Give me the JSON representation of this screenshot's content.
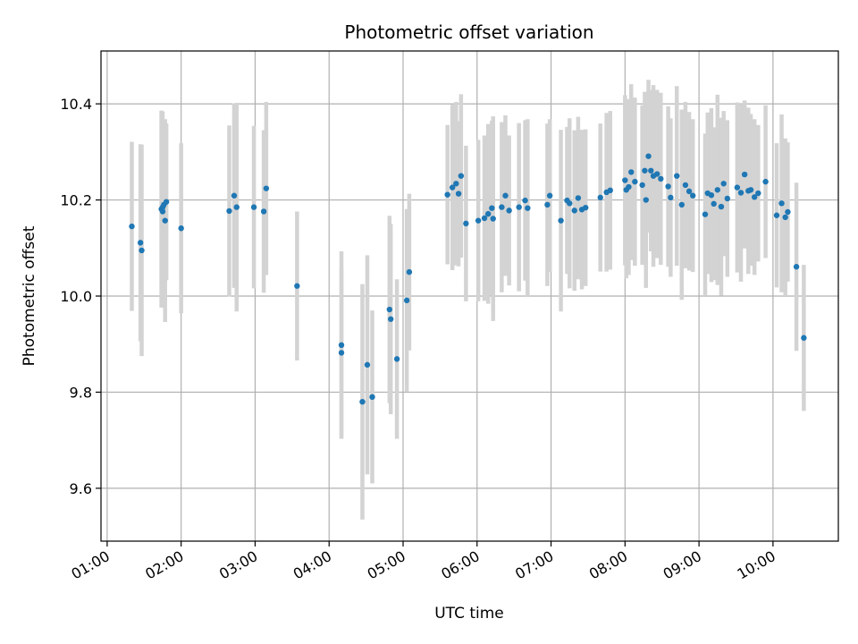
{
  "chart_data": {
    "type": "scatter",
    "title": "Photometric offset variation",
    "xlabel": "UTC time",
    "ylabel": "Photometric offset",
    "grid": true,
    "xlim": [
      "00:55",
      "10:53"
    ],
    "ylim": [
      9.49,
      10.51
    ],
    "x_ticks": [
      "01:00",
      "02:00",
      "03:00",
      "04:00",
      "05:00",
      "06:00",
      "07:00",
      "08:00",
      "09:00",
      "10:00"
    ],
    "y_ticks": [
      "9.6",
      "9.8",
      "10.0",
      "10.2",
      "10.4"
    ],
    "colors": {
      "points": "#1f77b4",
      "errorbars": "#d3d3d3",
      "grid": "#b0b0b0"
    },
    "series": [
      {
        "x": [
          "01:20",
          "01:27",
          "01:28",
          "01:44",
          "01:45",
          "01:45",
          "01:46",
          "01:47",
          "01:48",
          "02:00",
          "02:39",
          "02:43",
          "02:45",
          "02:59",
          "03:07",
          "03:09",
          "03:34",
          "04:10",
          "04:10",
          "04:27",
          "04:31",
          "04:35",
          "04:49",
          "04:50",
          "04:55",
          "05:03",
          "05:05",
          "05:36",
          "05:40",
          "05:43",
          "05:45",
          "05:47",
          "05:51",
          "06:01",
          "06:06",
          "06:09",
          "06:12",
          "06:13",
          "06:20",
          "06:23",
          "06:26",
          "06:34",
          "06:39",
          "06:41",
          "06:57",
          "06:59",
          "07:08",
          "07:13",
          "07:15",
          "07:19",
          "07:22",
          "07:25",
          "07:28",
          "07:40",
          "07:45",
          "07:48",
          "08:00",
          "08:01",
          "08:03",
          "08:05",
          "08:08",
          "08:14",
          "08:16",
          "08:17",
          "08:19",
          "08:21",
          "08:23",
          "08:26",
          "08:29",
          "08:35",
          "08:37",
          "08:42",
          "08:46",
          "08:49",
          "08:52",
          "08:55",
          "09:05",
          "09:07",
          "09:10",
          "09:12",
          "09:15",
          "09:18",
          "09:20",
          "09:23",
          "09:31",
          "09:34",
          "09:37",
          "09:40",
          "09:42",
          "09:45",
          "09:48",
          "09:54",
          "10:03",
          "10:07",
          "10:10",
          "10:12",
          "10:19",
          "10:25"
        ],
        "y": [
          10.145,
          10.111,
          10.095,
          10.181,
          10.185,
          10.176,
          10.19,
          10.157,
          10.196,
          10.141,
          10.177,
          10.209,
          10.185,
          10.185,
          10.176,
          10.224,
          10.021,
          9.898,
          9.882,
          9.78,
          9.857,
          9.79,
          9.972,
          9.952,
          9.869,
          9.991,
          10.05,
          10.211,
          10.226,
          10.234,
          10.213,
          10.25,
          10.151,
          10.157,
          10.162,
          10.171,
          10.183,
          10.161,
          10.185,
          10.209,
          10.178,
          10.185,
          10.199,
          10.183,
          10.19,
          10.209,
          10.157,
          10.199,
          10.193,
          10.178,
          10.204,
          10.18,
          10.184,
          10.205,
          10.216,
          10.22,
          10.241,
          10.221,
          10.227,
          10.258,
          10.238,
          10.231,
          10.261,
          10.2,
          10.291,
          10.261,
          10.25,
          10.254,
          10.244,
          10.228,
          10.205,
          10.25,
          10.19,
          10.231,
          10.218,
          10.209,
          10.17,
          10.214,
          10.21,
          10.192,
          10.221,
          10.186,
          10.234,
          10.203,
          10.226,
          10.215,
          10.253,
          10.219,
          10.221,
          10.206,
          10.214,
          10.238,
          10.168,
          10.193,
          10.164,
          10.175,
          10.061,
          9.913
        ],
        "err": [
          0.176,
          0.205,
          0.22,
          0.205,
          0.199,
          0.186,
          0.164,
          0.211,
          0.163,
          0.177,
          0.178,
          0.192,
          0.217,
          0.169,
          0.169,
          0.18,
          0.155,
          0.195,
          0.177,
          0.245,
          0.228,
          0.18,
          0.195,
          0.198,
          0.166,
          0.19,
          0.163,
          0.145,
          0.172,
          0.17,
          0.151,
          0.17,
          0.162,
          0.168,
          0.172,
          0.187,
          0.182,
          0.213,
          0.177,
          0.167,
          0.156,
          0.175,
          0.167,
          0.185,
          0.169,
          0.159,
          0.189,
          0.153,
          0.177,
          0.167,
          0.169,
          0.166,
          0.163,
          0.154,
          0.165,
          0.165,
          0.177,
          0.184,
          0.183,
          0.183,
          0.175,
          0.166,
          0.164,
          0.183,
          0.159,
          0.168,
          0.189,
          0.175,
          0.179,
          0.167,
          0.165,
          0.187,
          0.198,
          0.173,
          0.165,
          0.159,
          0.168,
          0.168,
          0.181,
          0.159,
          0.198,
          0.185,
          0.151,
          0.163,
          0.177,
          0.185,
          0.154,
          0.173,
          0.158,
          0.162,
          0.142,
          0.159,
          0.15,
          0.185,
          0.164,
          0.145,
          0.175,
          0.152
        ]
      }
    ]
  }
}
